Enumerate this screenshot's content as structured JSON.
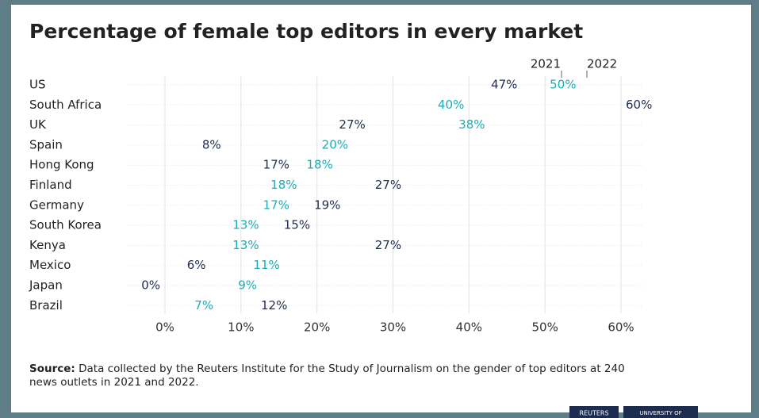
{
  "chart_data": {
    "type": "dot",
    "title": "Percentage of female top editors in every market",
    "categories": [
      "US",
      "South Africa",
      "UK",
      "Spain",
      "Hong Kong",
      "Finland",
      "Germany",
      "South Korea",
      "Kenya",
      "Mexico",
      "Japan",
      "Brazil"
    ],
    "series": [
      {
        "name": "2021",
        "color": "#1d2d50",
        "values": [
          47,
          60,
          27,
          8,
          17,
          27,
          19,
          15,
          27,
          6,
          0,
          12
        ],
        "value_labels": [
          "47%",
          "60%",
          "27%",
          "8%",
          "17%",
          "27%",
          "19%",
          "15%",
          "27%",
          "6%",
          "0%",
          "12%"
        ]
      },
      {
        "name": "2022",
        "color": "#1aaeb6",
        "values": [
          50,
          40,
          38,
          20,
          18,
          18,
          17,
          13,
          13,
          11,
          9,
          7
        ],
        "value_labels": [
          "50%",
          "40%",
          "38%",
          "20%",
          "18%",
          "18%",
          "17%",
          "13%",
          "13%",
          "11%",
          "9%",
          "7%"
        ]
      }
    ],
    "xlim": [
      0,
      60
    ],
    "xticks": [
      {
        "value": 0,
        "label": "0%"
      },
      {
        "value": 10,
        "label": "10%"
      },
      {
        "value": 20,
        "label": "20%"
      },
      {
        "value": 30,
        "label": "30%"
      },
      {
        "value": 40,
        "label": "40%"
      },
      {
        "value": 50,
        "label": "50%"
      },
      {
        "value": 60,
        "label": "60%"
      }
    ],
    "grid": true,
    "source_label": "Source:",
    "source_text": "Data collected by the Reuters Institute for the Study of Journalism on the gender of top editors at 240",
    "source_text_2": "news outlets in 2021 and 2022.",
    "logos": [
      "REUTERS",
      "UNIVERSITY OF"
    ]
  }
}
